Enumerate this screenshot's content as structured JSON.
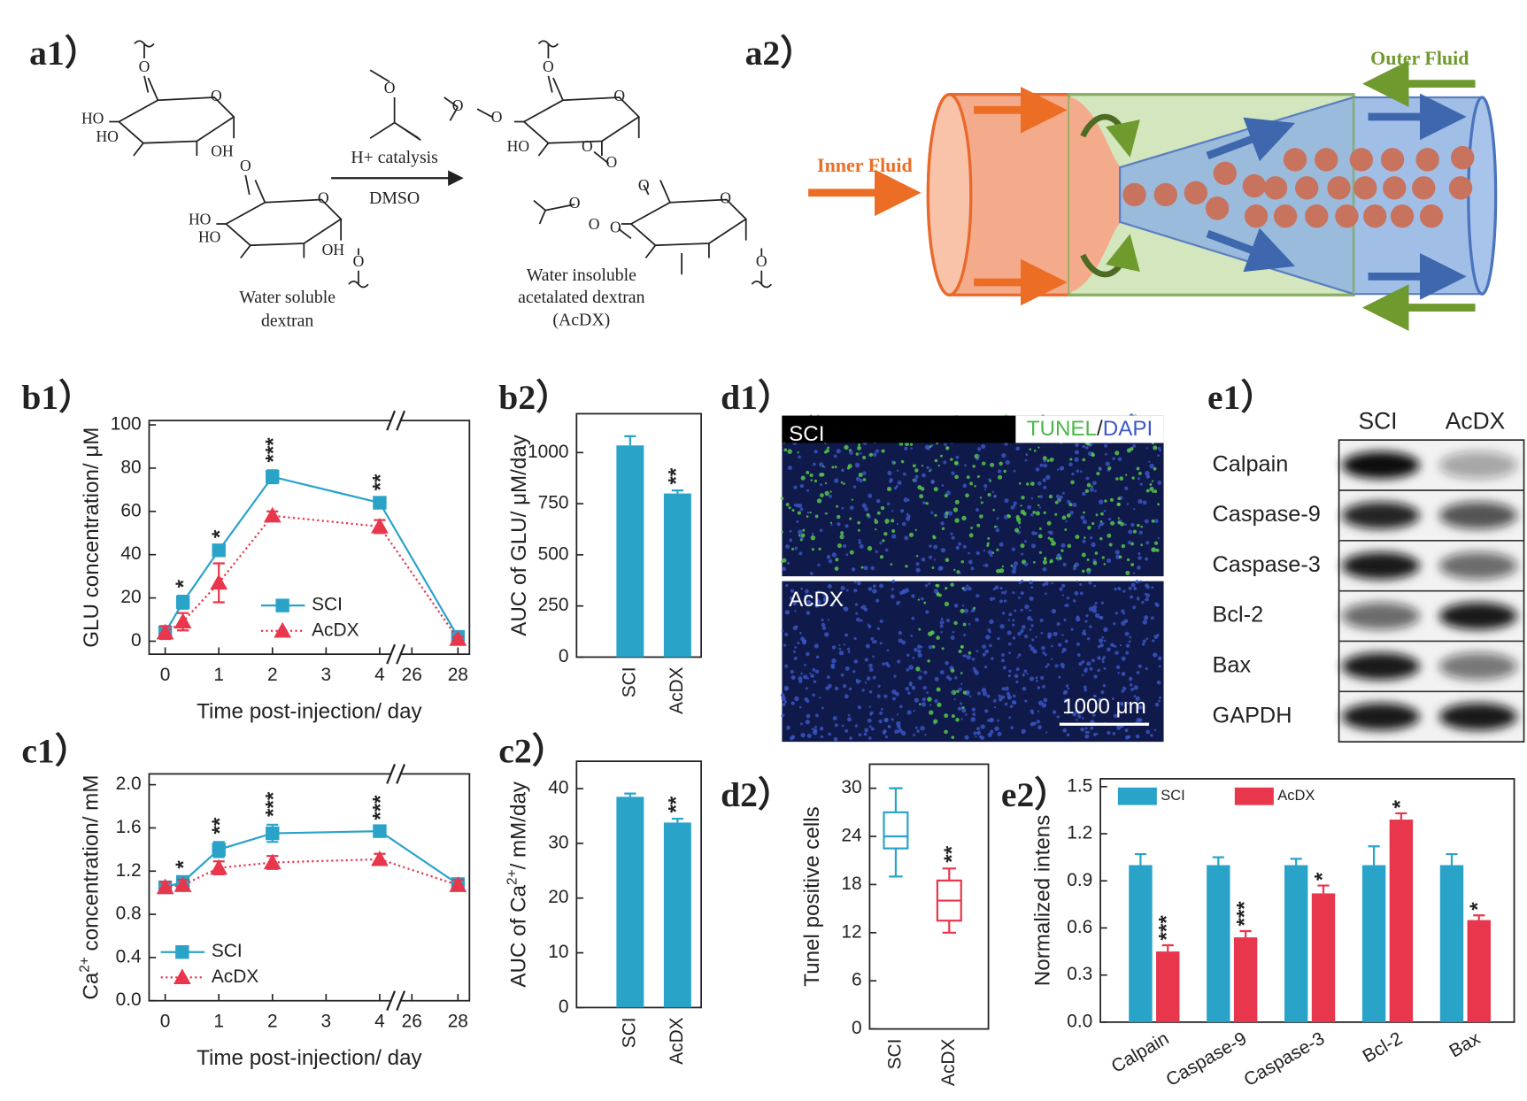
{
  "panels": [
    "a1）",
    "a2）",
    "b1）",
    "b2）",
    "c1）",
    "c2）",
    "d1）",
    "d2）",
    "e1）",
    "e2）"
  ],
  "scheme": {
    "reagent": "H+ catalysis",
    "solvent": "DMSO",
    "reactant": [
      "Water soluble",
      "dextran"
    ],
    "product": [
      "Water insoluble",
      "acetalated dextran",
      "(AcDX)"
    ],
    "reactant_atoms": [
      "HO",
      "HO",
      "OH",
      "O",
      "O",
      "HO",
      "HO",
      "OH",
      "O",
      "O",
      "O",
      "O"
    ],
    "product_atoms": [
      "O",
      "O",
      "O",
      "O",
      "HO",
      "O",
      "O",
      "O",
      "O",
      "O",
      "O",
      "O",
      "O"
    ]
  },
  "microfluidic": {
    "inner": "Inner Fluid",
    "outer": "Outer Fluid"
  },
  "tunel": {
    "groups": [
      "SCI",
      "AcDX"
    ],
    "stain_1": "TUNEL",
    "separator": "/",
    "stain_2": "DAPI",
    "scale_bar": "1000 μm"
  },
  "blot": {
    "groups": [
      "SCI",
      "AcDX"
    ],
    "proteins": [
      "Calpain",
      "Caspase-9",
      "Caspase-3",
      "Bcl-2",
      "Bax",
      "GAPDH"
    ]
  },
  "chart_data": [
    {
      "type": "line",
      "ylabel": "GLU concentration/ μM",
      "xlabel": "Time post-injection/ day",
      "x": [
        0,
        0.33,
        1,
        2,
        4,
        28
      ],
      "xlim": [
        -0.3,
        28.5
      ],
      "xbreak": [
        4.3,
        25.3
      ],
      "xticks": [
        0,
        1,
        2,
        3,
        4,
        26,
        28
      ],
      "ylim": [
        -6,
        102
      ],
      "yticks": [
        0,
        20,
        40,
        60,
        80,
        100
      ],
      "legend": "lower center",
      "series": [
        {
          "name": "SCI",
          "color": "#2aa3c9",
          "marker": "square",
          "linestyle": "solid",
          "values": [
            4,
            18,
            42,
            76,
            64,
            2
          ],
          "errors": [
            2,
            3,
            2,
            3,
            2,
            1
          ]
        },
        {
          "name": "AcDX",
          "color": "#e8364c",
          "marker": "triangle",
          "linestyle": "dotted",
          "values": [
            4,
            9,
            27,
            58,
            53,
            1
          ],
          "errors": [
            3,
            4,
            9,
            2,
            3,
            1
          ]
        }
      ],
      "significance": [
        null,
        "*",
        "*",
        "***",
        "**",
        null
      ]
    },
    {
      "type": "bar",
      "ylabel": "AUC of GLU/ μM/day",
      "categories": [
        "SCI",
        "AcDX"
      ],
      "values": [
        1035,
        800
      ],
      "errors": [
        45,
        15
      ],
      "color": "#2aa3c9",
      "ylim": [
        0,
        1190
      ],
      "yticks": [
        0,
        250,
        500,
        750,
        1000
      ],
      "significance": [
        null,
        "**"
      ]
    },
    {
      "type": "line",
      "ylabel": [
        "Ca",
        "2+",
        " concentration/ mM"
      ],
      "xlabel": "Time post-injection/ day",
      "x": [
        0,
        0.33,
        1,
        2,
        4,
        28
      ],
      "xlim": [
        -0.3,
        28.5
      ],
      "xbreak": [
        4.3,
        25.3
      ],
      "xticks": [
        0,
        1,
        2,
        3,
        4,
        26,
        28
      ],
      "ylim": [
        0,
        2.1
      ],
      "yticks": [
        {
          "value": 0,
          "label": "0.0"
        },
        0.4,
        0.8,
        1.2,
        1.6,
        {
          "value": 2,
          "label": "2.0"
        }
      ],
      "legend": "lower left",
      "series": [
        {
          "name": "SCI",
          "color": "#2aa3c9",
          "marker": "square",
          "linestyle": "solid",
          "values": [
            1.05,
            1.1,
            1.4,
            1.55,
            1.57,
            1.08
          ],
          "errors": [
            0.05,
            0.05,
            0.07,
            0.08,
            0.03,
            0.04
          ]
        },
        {
          "name": "AcDX",
          "color": "#e8364c",
          "marker": "triangle",
          "linestyle": "dotted",
          "values": [
            1.05,
            1.07,
            1.23,
            1.28,
            1.31,
            1.07
          ],
          "errors": [
            0.05,
            0.05,
            0.06,
            0.06,
            0.05,
            0.05
          ]
        }
      ],
      "significance": [
        null,
        "*",
        "**",
        "***",
        "***",
        null
      ]
    },
    {
      "type": "bar",
      "ylabel": [
        "AUC of Ca",
        "2+",
        "/ mM/day"
      ],
      "categories": [
        "SCI",
        "AcDX"
      ],
      "values": [
        38.5,
        33.8
      ],
      "errors": [
        0.6,
        0.7
      ],
      "color": "#2aa3c9",
      "ylim": [
        0,
        45
      ],
      "yticks": [
        0,
        10,
        20,
        30,
        40
      ],
      "significance": [
        null,
        "**"
      ]
    },
    {
      "type": "box",
      "ylabel": "Tunel positive cells",
      "categories": [
        "SCI",
        "AcDX"
      ],
      "colors": [
        "#2aa3c9",
        "#e8364c"
      ],
      "boxes": [
        {
          "min": 19,
          "q1": 22.5,
          "median": 24,
          "q3": 27,
          "max": 30
        },
        {
          "min": 12,
          "q1": 13.5,
          "median": 16,
          "q3": 18.5,
          "max": 20
        }
      ],
      "ylim": [
        0,
        33
      ],
      "yticks": [
        0,
        6,
        12,
        18,
        24,
        30
      ],
      "significance": [
        null,
        "**"
      ]
    },
    {
      "type": "grouped_bar",
      "ylabel": "Normalized intens",
      "categories": [
        "Calpain",
        "Caspase-9",
        "Caspase-3",
        "Bcl-2",
        "Bax"
      ],
      "ylim": [
        0,
        1.55
      ],
      "yticks": [
        {
          "value": 0,
          "label": "0.0"
        },
        0.3,
        0.6,
        0.9,
        1.2,
        1.5
      ],
      "legend": "upper left",
      "series": [
        {
          "name": "SCI",
          "color": "#2aa3c9",
          "values": [
            1,
            1,
            1,
            1,
            1
          ],
          "errors": [
            0.07,
            0.05,
            0.04,
            0.12,
            0.07
          ]
        },
        {
          "name": "AcDX",
          "color": "#e8364c",
          "values": [
            0.45,
            0.54,
            0.82,
            1.29,
            0.65
          ],
          "errors": [
            0.04,
            0.04,
            0.05,
            0.04,
            0.03
          ],
          "significance": [
            "***",
            "***",
            "*",
            "*",
            "*"
          ]
        }
      ]
    }
  ]
}
